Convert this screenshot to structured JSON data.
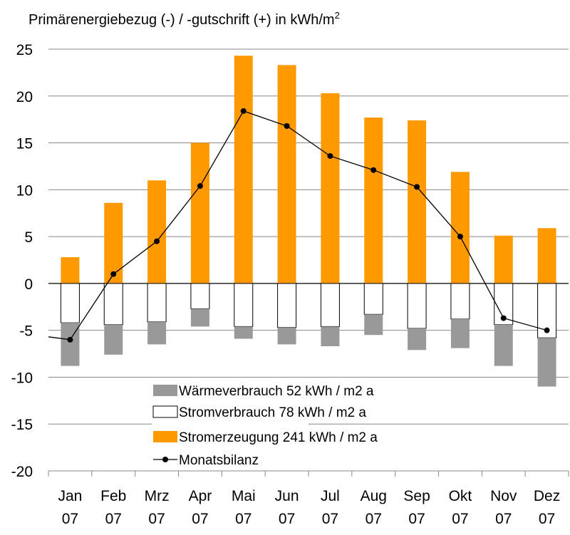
{
  "chart_data": {
    "type": "bar",
    "title": "Primärenergiebezug (-) / -gutschrift (+) in kWh/m",
    "title_superscript": "2",
    "categories": [
      [
        "Jan",
        "07"
      ],
      [
        "Feb",
        "07"
      ],
      [
        "Mrz",
        "07"
      ],
      [
        "Apr",
        "07"
      ],
      [
        "Mai",
        "07"
      ],
      [
        "Jun",
        "07"
      ],
      [
        "Jul",
        "07"
      ],
      [
        "Aug",
        "07"
      ],
      [
        "Sep",
        "07"
      ],
      [
        "Okt",
        "07"
      ],
      [
        "Nov",
        "07"
      ],
      [
        "Dez",
        "07"
      ]
    ],
    "ylim": [
      -20,
      25
    ],
    "yticks": [
      25,
      20,
      15,
      10,
      5,
      0,
      -5,
      -10,
      -15,
      -20
    ],
    "grid": true,
    "legend_position": "bottom-center",
    "series": [
      {
        "name": "Stromerzeugung 241 kWh / m2 a",
        "kind": "bar",
        "color": "#FF9900",
        "values": [
          2.8,
          8.6,
          11.0,
          15.0,
          24.3,
          23.3,
          20.3,
          17.7,
          17.4,
          11.9,
          5.1,
          5.9
        ]
      },
      {
        "name": "Stromverbrauch 78 kWh / m2 a",
        "kind": "stacked-negative",
        "color": "#FFFFFF",
        "values": [
          -4.2,
          -4.4,
          -4.1,
          -2.7,
          -4.6,
          -4.7,
          -4.6,
          -3.3,
          -4.8,
          -3.8,
          -4.4,
          -5.8
        ]
      },
      {
        "name": "Wärmeverbrauch 52 kWh / m2 a",
        "kind": "stacked-negative",
        "color": "#999999",
        "values": [
          -4.6,
          -3.2,
          -2.4,
          -1.9,
          -1.3,
          -1.8,
          -2.1,
          -2.2,
          -2.3,
          -3.1,
          -4.4,
          -5.2
        ]
      },
      {
        "name": "Monatsbilanz",
        "kind": "line",
        "color": "#000000",
        "values": [
          -6.0,
          1.0,
          4.5,
          10.4,
          18.4,
          16.8,
          13.6,
          12.1,
          10.3,
          5.0,
          -3.7,
          -5.0
        ]
      }
    ]
  }
}
